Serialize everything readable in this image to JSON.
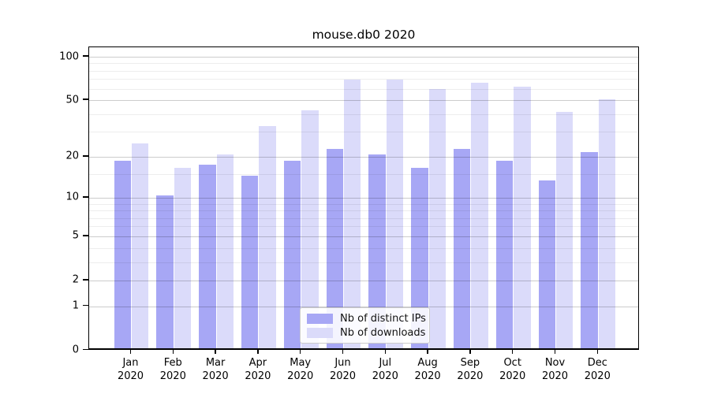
{
  "title": "mouse.db0 2020",
  "chart_data": {
    "type": "bar",
    "title": "mouse.db0 2020",
    "categories": [
      "Jan",
      "Feb",
      "Mar",
      "Apr",
      "May",
      "Jun",
      "Jul",
      "Aug",
      "Sep",
      "Oct",
      "Nov",
      "Dec"
    ],
    "category_sublabel": "2020",
    "series": [
      {
        "name": "Nb of distinct IPs",
        "color": "#a7a7f5",
        "values": [
          18,
          10,
          17,
          14,
          18,
          22,
          20,
          16,
          22,
          18,
          13,
          21
        ]
      },
      {
        "name": "Nb of downloads",
        "color": "#dbdbfa",
        "values": [
          24,
          16,
          20,
          32,
          41,
          67,
          67,
          58,
          64,
          60,
          40,
          49
        ]
      }
    ],
    "xlabel": "",
    "ylabel": "",
    "ylim": [
      0,
      100
    ],
    "yscale": "log10(value+1)",
    "yticks": [
      0,
      1,
      2,
      5,
      10,
      20,
      50,
      100
    ],
    "minor_gridlines": [
      3,
      4,
      6,
      7,
      8,
      9,
      15,
      30,
      40,
      60,
      70,
      80,
      90
    ],
    "grid": true,
    "legend_position": "inside-bottom-center"
  }
}
